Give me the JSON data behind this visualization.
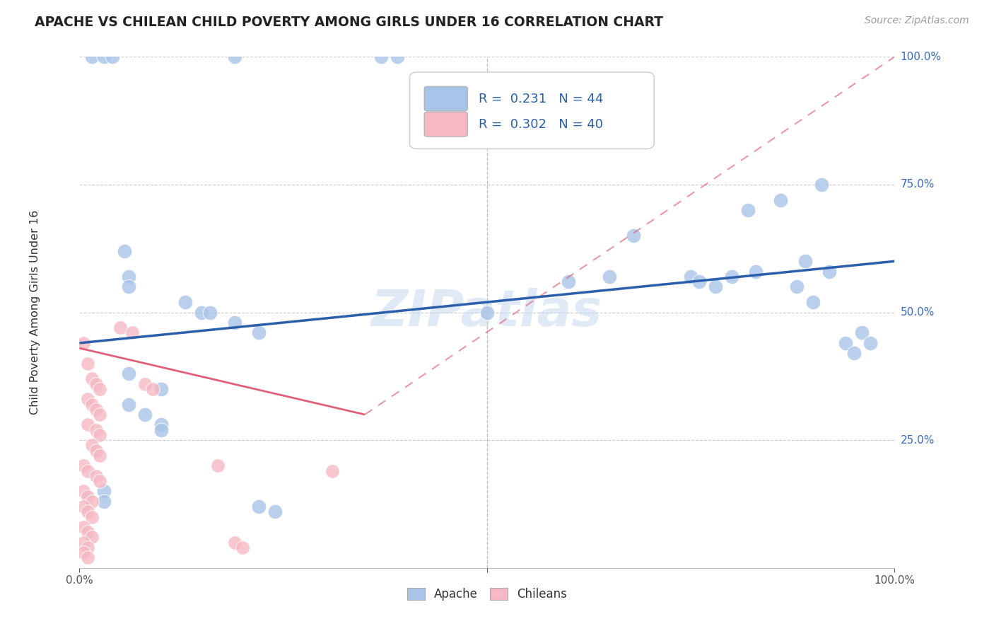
{
  "title": "APACHE VS CHILEAN CHILD POVERTY AMONG GIRLS UNDER 16 CORRELATION CHART",
  "source": "Source: ZipAtlas.com",
  "ylabel": "Child Poverty Among Girls Under 16",
  "watermark": "ZIPatlas",
  "apache_R": 0.231,
  "apache_N": 44,
  "chilean_R": 0.302,
  "chilean_N": 40,
  "apache_color": "#a8c4e8",
  "chilean_color": "#f5b8c4",
  "apache_line_color": "#2b5faa",
  "chilean_line_color": "#e0607a",
  "apache_scatter": [
    [
      0.015,
      1.0
    ],
    [
      0.03,
      1.0
    ],
    [
      0.04,
      1.0
    ],
    [
      0.19,
      1.0
    ],
    [
      0.37,
      1.0
    ],
    [
      0.39,
      1.0
    ],
    [
      0.055,
      0.62
    ],
    [
      0.06,
      0.57
    ],
    [
      0.06,
      0.55
    ],
    [
      0.13,
      0.52
    ],
    [
      0.15,
      0.5
    ],
    [
      0.16,
      0.5
    ],
    [
      0.19,
      0.48
    ],
    [
      0.22,
      0.46
    ],
    [
      0.5,
      0.5
    ],
    [
      0.6,
      0.56
    ],
    [
      0.65,
      0.57
    ],
    [
      0.68,
      0.65
    ],
    [
      0.75,
      0.57
    ],
    [
      0.76,
      0.56
    ],
    [
      0.78,
      0.55
    ],
    [
      0.8,
      0.57
    ],
    [
      0.82,
      0.7
    ],
    [
      0.83,
      0.58
    ],
    [
      0.86,
      0.72
    ],
    [
      0.88,
      0.55
    ],
    [
      0.89,
      0.6
    ],
    [
      0.9,
      0.52
    ],
    [
      0.91,
      0.75
    ],
    [
      0.92,
      0.58
    ],
    [
      0.94,
      0.44
    ],
    [
      0.95,
      0.42
    ],
    [
      0.96,
      0.46
    ],
    [
      0.97,
      0.44
    ],
    [
      0.06,
      0.38
    ],
    [
      0.1,
      0.35
    ],
    [
      0.06,
      0.32
    ],
    [
      0.08,
      0.3
    ],
    [
      0.1,
      0.28
    ],
    [
      0.1,
      0.27
    ],
    [
      0.03,
      0.15
    ],
    [
      0.03,
      0.13
    ],
    [
      0.22,
      0.12
    ],
    [
      0.24,
      0.11
    ]
  ],
  "chilean_scatter": [
    [
      0.005,
      0.44
    ],
    [
      0.01,
      0.4
    ],
    [
      0.015,
      0.37
    ],
    [
      0.02,
      0.36
    ],
    [
      0.025,
      0.35
    ],
    [
      0.01,
      0.33
    ],
    [
      0.015,
      0.32
    ],
    [
      0.02,
      0.31
    ],
    [
      0.025,
      0.3
    ],
    [
      0.01,
      0.28
    ],
    [
      0.02,
      0.27
    ],
    [
      0.025,
      0.26
    ],
    [
      0.015,
      0.24
    ],
    [
      0.02,
      0.23
    ],
    [
      0.025,
      0.22
    ],
    [
      0.005,
      0.2
    ],
    [
      0.01,
      0.19
    ],
    [
      0.02,
      0.18
    ],
    [
      0.025,
      0.17
    ],
    [
      0.005,
      0.15
    ],
    [
      0.01,
      0.14
    ],
    [
      0.015,
      0.13
    ],
    [
      0.005,
      0.12
    ],
    [
      0.01,
      0.11
    ],
    [
      0.015,
      0.1
    ],
    [
      0.005,
      0.08
    ],
    [
      0.01,
      0.07
    ],
    [
      0.015,
      0.06
    ],
    [
      0.005,
      0.05
    ],
    [
      0.01,
      0.04
    ],
    [
      0.05,
      0.47
    ],
    [
      0.065,
      0.46
    ],
    [
      0.08,
      0.36
    ],
    [
      0.09,
      0.35
    ],
    [
      0.17,
      0.2
    ],
    [
      0.19,
      0.05
    ],
    [
      0.2,
      0.04
    ],
    [
      0.31,
      0.19
    ],
    [
      0.005,
      0.03
    ],
    [
      0.01,
      0.02
    ]
  ],
  "xlim": [
    0,
    1
  ],
  "ylim": [
    0,
    1
  ],
  "apache_trend": [
    0.0,
    1.0,
    0.44,
    0.6
  ],
  "chilean_trend_solid": [
    0.0,
    0.35,
    0.43,
    0.3
  ],
  "chilean_trend_dash": [
    0.35,
    1.0,
    0.3,
    1.0
  ]
}
